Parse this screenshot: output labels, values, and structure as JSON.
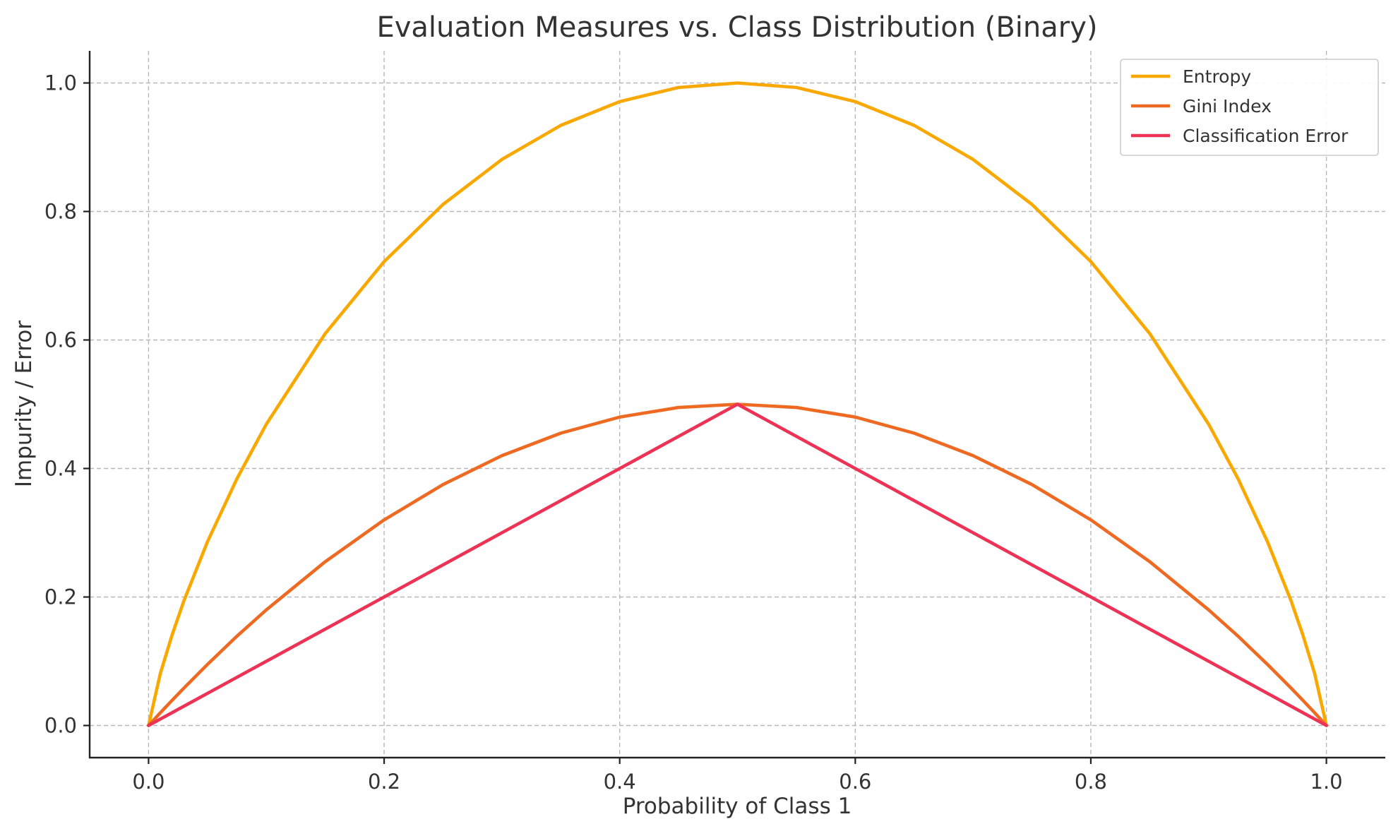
{
  "chart_data": {
    "type": "line",
    "title": "Evaluation Measures vs. Class Distribution (Binary)",
    "xlabel": "Probability of Class 1",
    "ylabel": "Impurity / Error",
    "xlim": [
      -0.05,
      1.05
    ],
    "ylim": [
      -0.05,
      1.05
    ],
    "x_ticks": [
      "0.0",
      "0.2",
      "0.4",
      "0.6",
      "0.8",
      "1.0"
    ],
    "y_ticks": [
      "0.0",
      "0.2",
      "0.4",
      "0.6",
      "0.8",
      "1.0"
    ],
    "grid": true,
    "legend_position": "top-right",
    "x": [
      0.0,
      0.01,
      0.02,
      0.03,
      0.05,
      0.075,
      0.1,
      0.15,
      0.2,
      0.25,
      0.3,
      0.35,
      0.4,
      0.45,
      0.5,
      0.55,
      0.6,
      0.65,
      0.7,
      0.75,
      0.8,
      0.85,
      0.9,
      0.925,
      0.95,
      0.97,
      0.98,
      0.99,
      1.0
    ],
    "series": [
      {
        "name": "Entropy",
        "color": "#f9a800",
        "values": [
          0.0,
          0.081,
          0.141,
          0.194,
          0.286,
          0.384,
          0.469,
          0.61,
          0.722,
          0.811,
          0.881,
          0.934,
          0.971,
          0.993,
          1.0,
          0.993,
          0.971,
          0.934,
          0.881,
          0.811,
          0.722,
          0.61,
          0.469,
          0.384,
          0.286,
          0.194,
          0.141,
          0.081,
          0.0
        ]
      },
      {
        "name": "Gini Index",
        "color": "#ee6a22",
        "values": [
          0.0,
          0.0198,
          0.0392,
          0.0582,
          0.095,
          0.139,
          0.18,
          0.255,
          0.32,
          0.375,
          0.42,
          0.455,
          0.48,
          0.495,
          0.5,
          0.495,
          0.48,
          0.455,
          0.42,
          0.375,
          0.32,
          0.255,
          0.18,
          0.139,
          0.095,
          0.0582,
          0.0392,
          0.0198,
          0.0
        ]
      },
      {
        "name": "Classification Error",
        "color": "#ec3355",
        "values": [
          0.0,
          0.01,
          0.02,
          0.03,
          0.05,
          0.075,
          0.1,
          0.15,
          0.2,
          0.25,
          0.3,
          0.35,
          0.4,
          0.45,
          0.5,
          0.45,
          0.4,
          0.35,
          0.3,
          0.25,
          0.2,
          0.15,
          0.1,
          0.075,
          0.05,
          0.03,
          0.02,
          0.01,
          0.0
        ]
      }
    ]
  }
}
